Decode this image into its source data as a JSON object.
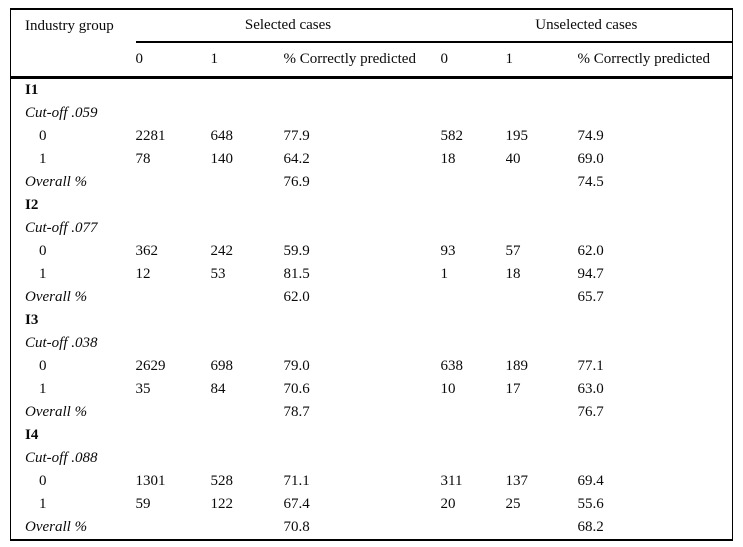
{
  "table": {
    "headers": {
      "stub": "Industry group",
      "selected_group": "Selected cases",
      "unselected_group": "Unselected cases",
      "sub": [
        "0",
        "1",
        "% Correctly predicted",
        "0",
        "1",
        "% Correctly predicted"
      ]
    },
    "groups": [
      {
        "name": "I1",
        "cutoff": "Cut-off .059",
        "rows": [
          {
            "label": "0",
            "values": [
              "2281",
              "648",
              "77.9",
              "582",
              "195",
              "74.9"
            ]
          },
          {
            "label": "1",
            "values": [
              "78",
              "140",
              "64.2",
              "18",
              "40",
              "69.0"
            ]
          }
        ],
        "overall_label": "Overall %",
        "overall_selected": "76.9",
        "overall_unselected": "74.5"
      },
      {
        "name": "I2",
        "cutoff": "Cut-off .077",
        "rows": [
          {
            "label": "0",
            "values": [
              "362",
              "242",
              "59.9",
              "93",
              "57",
              "62.0"
            ]
          },
          {
            "label": "1",
            "values": [
              "12",
              "53",
              "81.5",
              "1",
              "18",
              "94.7"
            ]
          }
        ],
        "overall_label": "Overall %",
        "overall_selected": "62.0",
        "overall_unselected": "65.7"
      },
      {
        "name": "I3",
        "cutoff": "Cut-off .038",
        "rows": [
          {
            "label": "0",
            "values": [
              "2629",
              "698",
              "79.0",
              "638",
              "189",
              "77.1"
            ]
          },
          {
            "label": "1",
            "values": [
              "35",
              "84",
              "70.6",
              "10",
              "17",
              "63.0"
            ]
          }
        ],
        "overall_label": "Overall %",
        "overall_selected": "78.7",
        "overall_unselected": "76.7"
      },
      {
        "name": "I4",
        "cutoff": "Cut-off .088",
        "rows": [
          {
            "label": "0",
            "values": [
              "1301",
              "528",
              "71.1",
              "311",
              "137",
              "69.4"
            ]
          },
          {
            "label": "1",
            "values": [
              "59",
              "122",
              "67.4",
              "20",
              "25",
              "55.6"
            ]
          }
        ],
        "overall_label": "Overall %",
        "overall_selected": "70.8",
        "overall_unselected": "68.2"
      }
    ]
  }
}
